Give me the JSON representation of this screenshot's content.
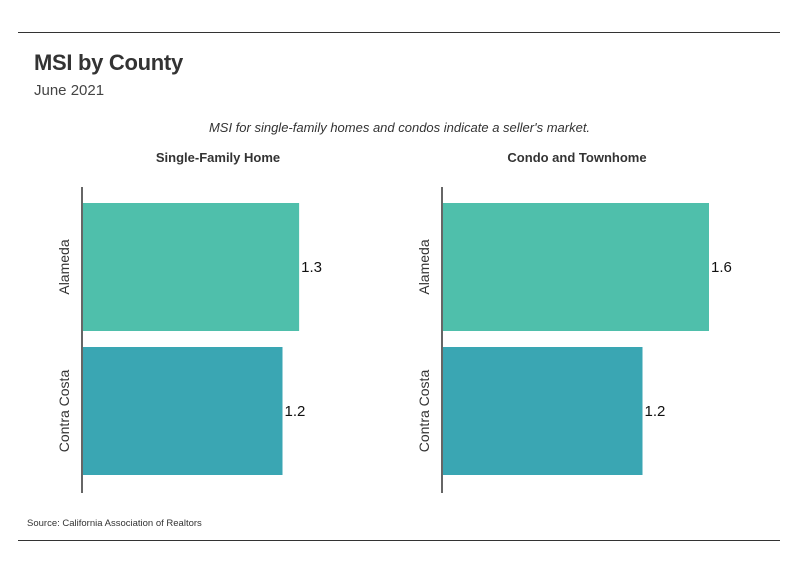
{
  "title": "MSI by County",
  "subtitle": "June 2021",
  "note": "MSI for single-family homes and condos indicate a seller's market.",
  "source": "Source:  California Association of Realtors",
  "colors": {
    "alameda": "#4fbfab",
    "contra_costa": "#3aa6b3",
    "axis": "#333333"
  },
  "chart_data": [
    {
      "type": "bar",
      "orientation": "horizontal",
      "title": "Single-Family Home",
      "categories": [
        "Alameda",
        "Contra Costa"
      ],
      "values": [
        1.3,
        1.2
      ],
      "xlim": [
        0,
        1.6
      ]
    },
    {
      "type": "bar",
      "orientation": "horizontal",
      "title": "Condo and Townhome",
      "categories": [
        "Alameda",
        "Contra Costa"
      ],
      "values": [
        1.6,
        1.2
      ],
      "xlim": [
        0,
        1.6
      ]
    }
  ]
}
